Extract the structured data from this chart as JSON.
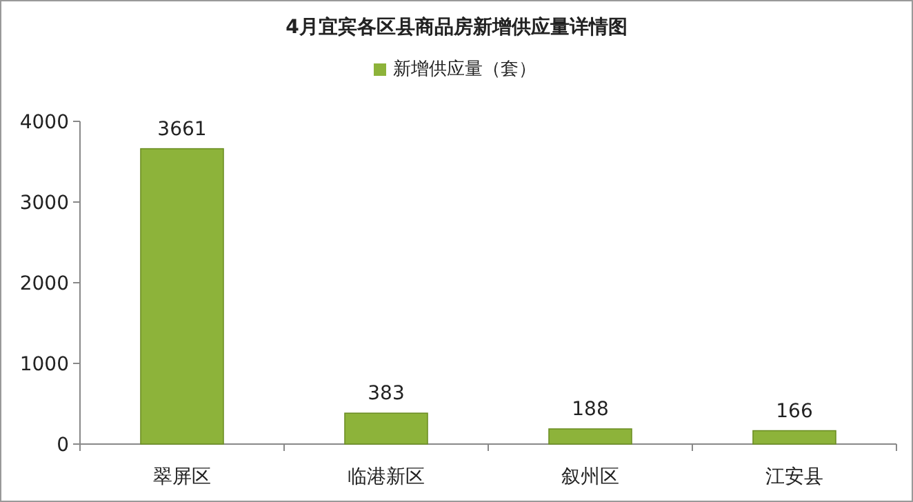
{
  "chart_data": {
    "type": "bar",
    "title": "4月宜宾各区县商品房新增供应量详情图",
    "categories": [
      "翠屏区",
      "临港新区",
      "叙州区",
      "江安县"
    ],
    "series": [
      {
        "name": "新增供应量（套）",
        "color": "#8db33a",
        "values": [
          3661,
          383,
          188,
          166
        ]
      }
    ],
    "ylim": [
      0,
      4000
    ],
    "yticks": [
      0,
      1000,
      2000,
      3000,
      4000
    ],
    "grid": false,
    "legend": "top",
    "data_labels": true
  }
}
